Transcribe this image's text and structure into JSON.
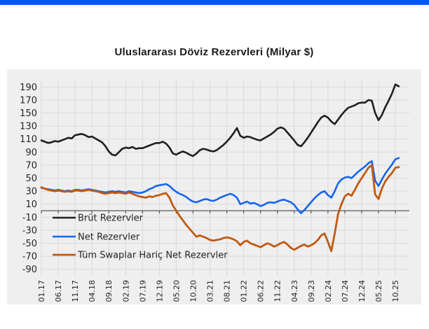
{
  "page": {
    "accent_bar_color": "#0056f0",
    "background_color": "#ffffff"
  },
  "chart": {
    "title": "Uluslararası  Döviz Rezervleri (Milyar $)"
  },
  "chart_data": {
    "type": "line",
    "title": "Uluslararası Döviz Rezervleri (Milyar $)",
    "x_unit": "month (MM.YY)",
    "x_start": "01.17",
    "x_end_data": "11.25",
    "x_tick_labels": [
      "01.17",
      "06.17",
      "11.17",
      "04.18",
      "09.18",
      "02.19",
      "07.19",
      "12.19",
      "05.20",
      "10.20",
      "03.21",
      "08.21",
      "01.22",
      "06.22",
      "11.22",
      "04.23",
      "09.23",
      "02.24",
      "07.24",
      "12.24",
      "05.25",
      "10.25"
    ],
    "x_tick_month_indices": [
      0,
      5,
      10,
      15,
      20,
      25,
      30,
      35,
      40,
      45,
      50,
      55,
      60,
      65,
      70,
      75,
      80,
      85,
      90,
      95,
      100,
      105
    ],
    "y_ticks": [
      190,
      170,
      150,
      130,
      110,
      90,
      70,
      50,
      30,
      10,
      -10,
      -30,
      -50,
      -70,
      -90
    ],
    "ylim": [
      -100,
      200
    ],
    "grid": true,
    "plot_bg": "#f0eff0",
    "grid_color": "#d9d9d9",
    "zero_line_color": "#595959",
    "legend_position": "inside-left-lower",
    "series": [
      {
        "name": "Brüt Rezervler",
        "slug": "brut-rezervler",
        "color": "#1f1f1f",
        "stroke_width": 2.6,
        "values": [
          108,
          106,
          104,
          105,
          107,
          106,
          108,
          110,
          112,
          111,
          116,
          117,
          118,
          116,
          113,
          114,
          111,
          108,
          105,
          99,
          91,
          86,
          85,
          90,
          95,
          97,
          96,
          98,
          95,
          96,
          96,
          98,
          100,
          102,
          104,
          104,
          106,
          103,
          97,
          88,
          86,
          89,
          91,
          89,
          86,
          84,
          88,
          93,
          95,
          94,
          92,
          91,
          93,
          97,
          101,
          106,
          112,
          119,
          127,
          115,
          112,
          114,
          113,
          111,
          109,
          108,
          111,
          114,
          117,
          121,
          126,
          128,
          126,
          120,
          114,
          108,
          101,
          99,
          105,
          112,
          120,
          128,
          136,
          143,
          146,
          143,
          137,
          133,
          140,
          147,
          153,
          158,
          160,
          162,
          165,
          166,
          166,
          170,
          169,
          150,
          139,
          147,
          159,
          169,
          180,
          194,
          191
        ]
      },
      {
        "name": "Net Rezervler",
        "slug": "net-rezervler",
        "color": "#1565ef",
        "stroke_width": 2.6,
        "values": [
          35,
          34,
          33,
          32,
          31,
          32,
          31,
          30,
          31,
          30,
          32,
          32,
          31,
          32,
          33,
          32,
          31,
          30,
          29,
          28,
          29,
          30,
          29,
          30,
          29,
          28,
          30,
          29,
          28,
          27,
          28,
          30,
          33,
          35,
          38,
          39,
          40,
          41,
          38,
          33,
          29,
          26,
          24,
          21,
          17,
          14,
          13,
          15,
          17,
          18,
          16,
          15,
          17,
          20,
          22,
          24,
          26,
          24,
          20,
          10,
          12,
          14,
          11,
          12,
          10,
          7,
          9,
          12,
          13,
          12,
          14,
          16,
          17,
          15,
          13,
          9,
          2,
          -4,
          1,
          7,
          13,
          19,
          24,
          28,
          30,
          24,
          20,
          30,
          42,
          48,
          51,
          52,
          50,
          55,
          60,
          64,
          68,
          73,
          76,
          46,
          38,
          48,
          57,
          64,
          71,
          79,
          81
        ]
      },
      {
        "name": "Tüm Swaplar Hariç Net Rezervler",
        "slug": "tum-swaplar-haric-net-rezervler",
        "color": "#c05a11",
        "stroke_width": 2.8,
        "values": [
          36,
          34,
          32,
          31,
          30,
          31,
          30,
          29,
          30,
          29,
          31,
          31,
          30,
          31,
          32,
          31,
          30,
          29,
          27,
          26,
          27,
          28,
          27,
          28,
          27,
          26,
          28,
          26,
          24,
          22,
          21,
          20,
          22,
          21,
          23,
          24,
          26,
          27,
          20,
          8,
          0,
          -8,
          -15,
          -22,
          -28,
          -34,
          -40,
          -38,
          -40,
          -42,
          -45,
          -46,
          -45,
          -44,
          -42,
          -41,
          -42,
          -44,
          -47,
          -53,
          -48,
          -46,
          -50,
          -52,
          -54,
          -56,
          -53,
          -50,
          -52,
          -55,
          -53,
          -50,
          -48,
          -52,
          -57,
          -60,
          -57,
          -54,
          -52,
          -55,
          -53,
          -50,
          -45,
          -38,
          -35,
          -48,
          -62,
          -35,
          -5,
          10,
          22,
          26,
          23,
          32,
          42,
          50,
          58,
          66,
          70,
          25,
          18,
          34,
          45,
          52,
          58,
          66,
          67
        ]
      }
    ]
  }
}
